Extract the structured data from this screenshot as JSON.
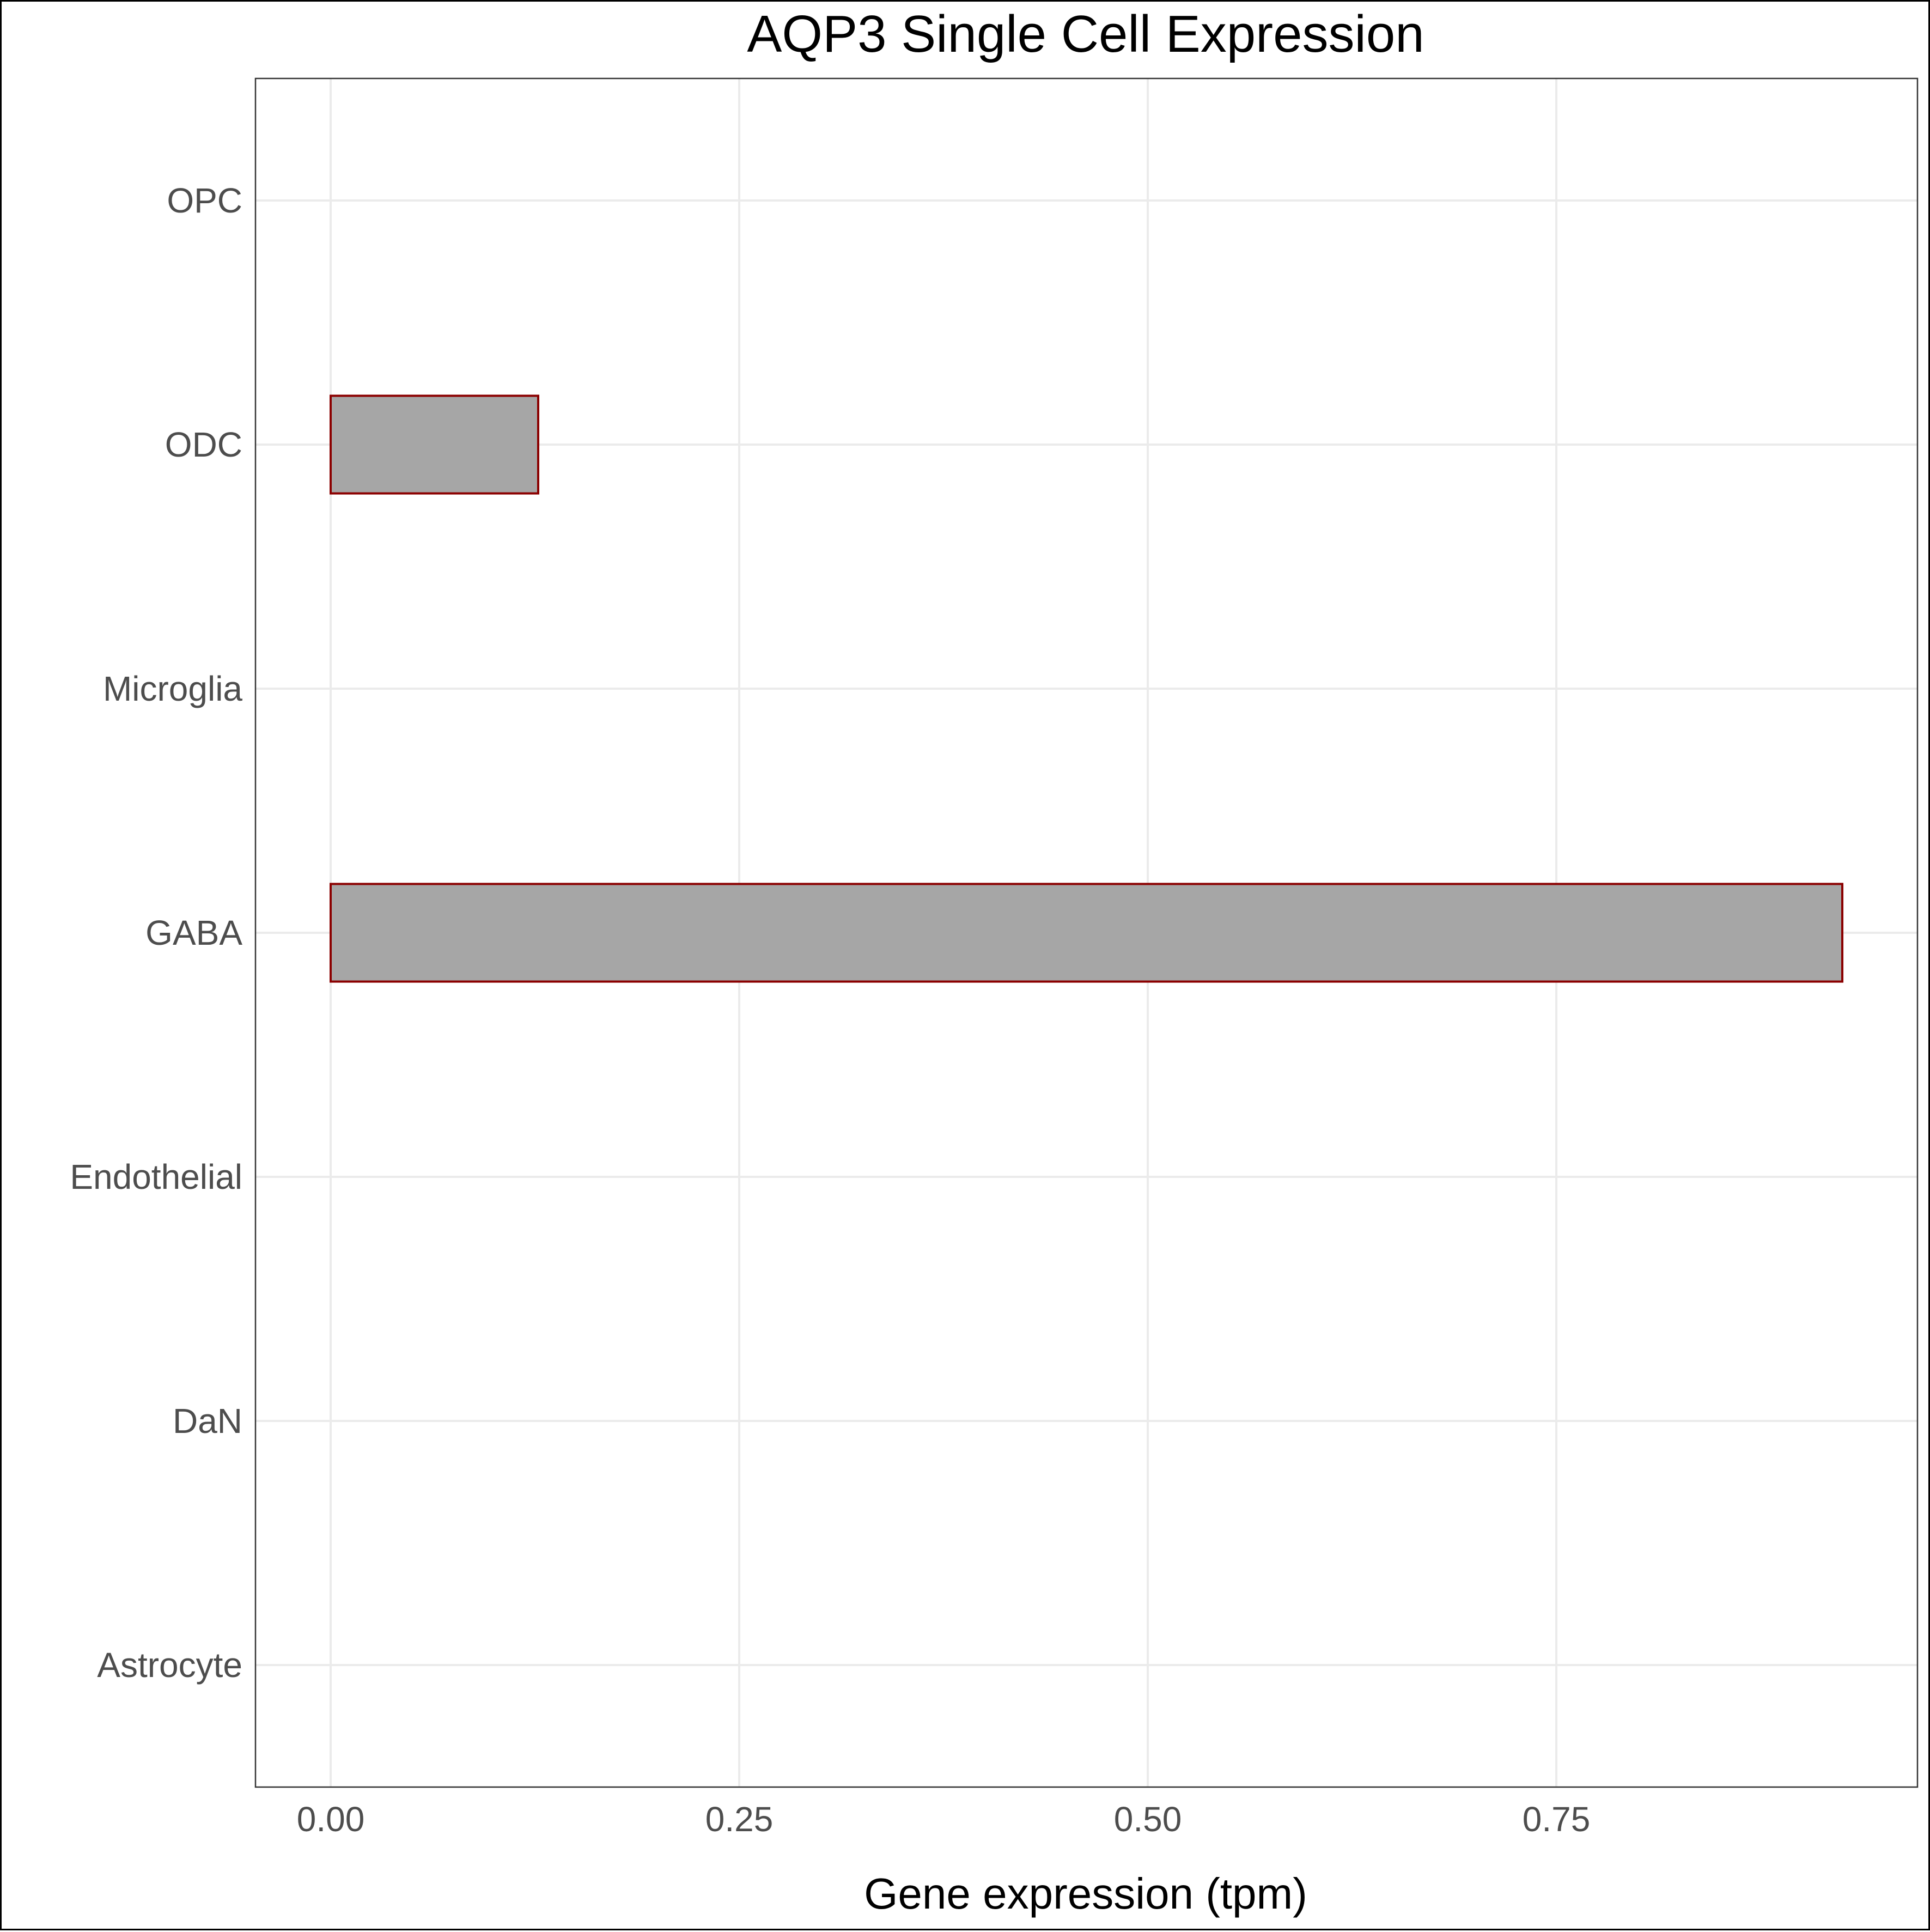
{
  "chart_data": {
    "type": "bar",
    "orientation": "horizontal",
    "title": "AQP3 Single Cell Expression",
    "xlabel": "Gene expression (tpm)",
    "ylabel": "",
    "categories": [
      "Astrocyte",
      "DaN",
      "Endothelial",
      "GABA",
      "Microglia",
      "ODC",
      "OPC"
    ],
    "values": [
      0,
      0,
      0,
      0.925,
      0,
      0.127,
      0
    ],
    "xlim": [
      -0.046,
      0.971
    ],
    "xticks": [
      0,
      0.25,
      0.5,
      0.75
    ],
    "xtick_labels": [
      "0.00",
      "0.25",
      "0.50",
      "0.75"
    ],
    "grid": true,
    "legend": "none",
    "colors": {
      "bar_fill": "#a6a6a6",
      "bar_outline": "#8b0000",
      "grid": "#ebebeb",
      "panel_border": "#333333",
      "tick_text": "#4d4d4d"
    }
  }
}
